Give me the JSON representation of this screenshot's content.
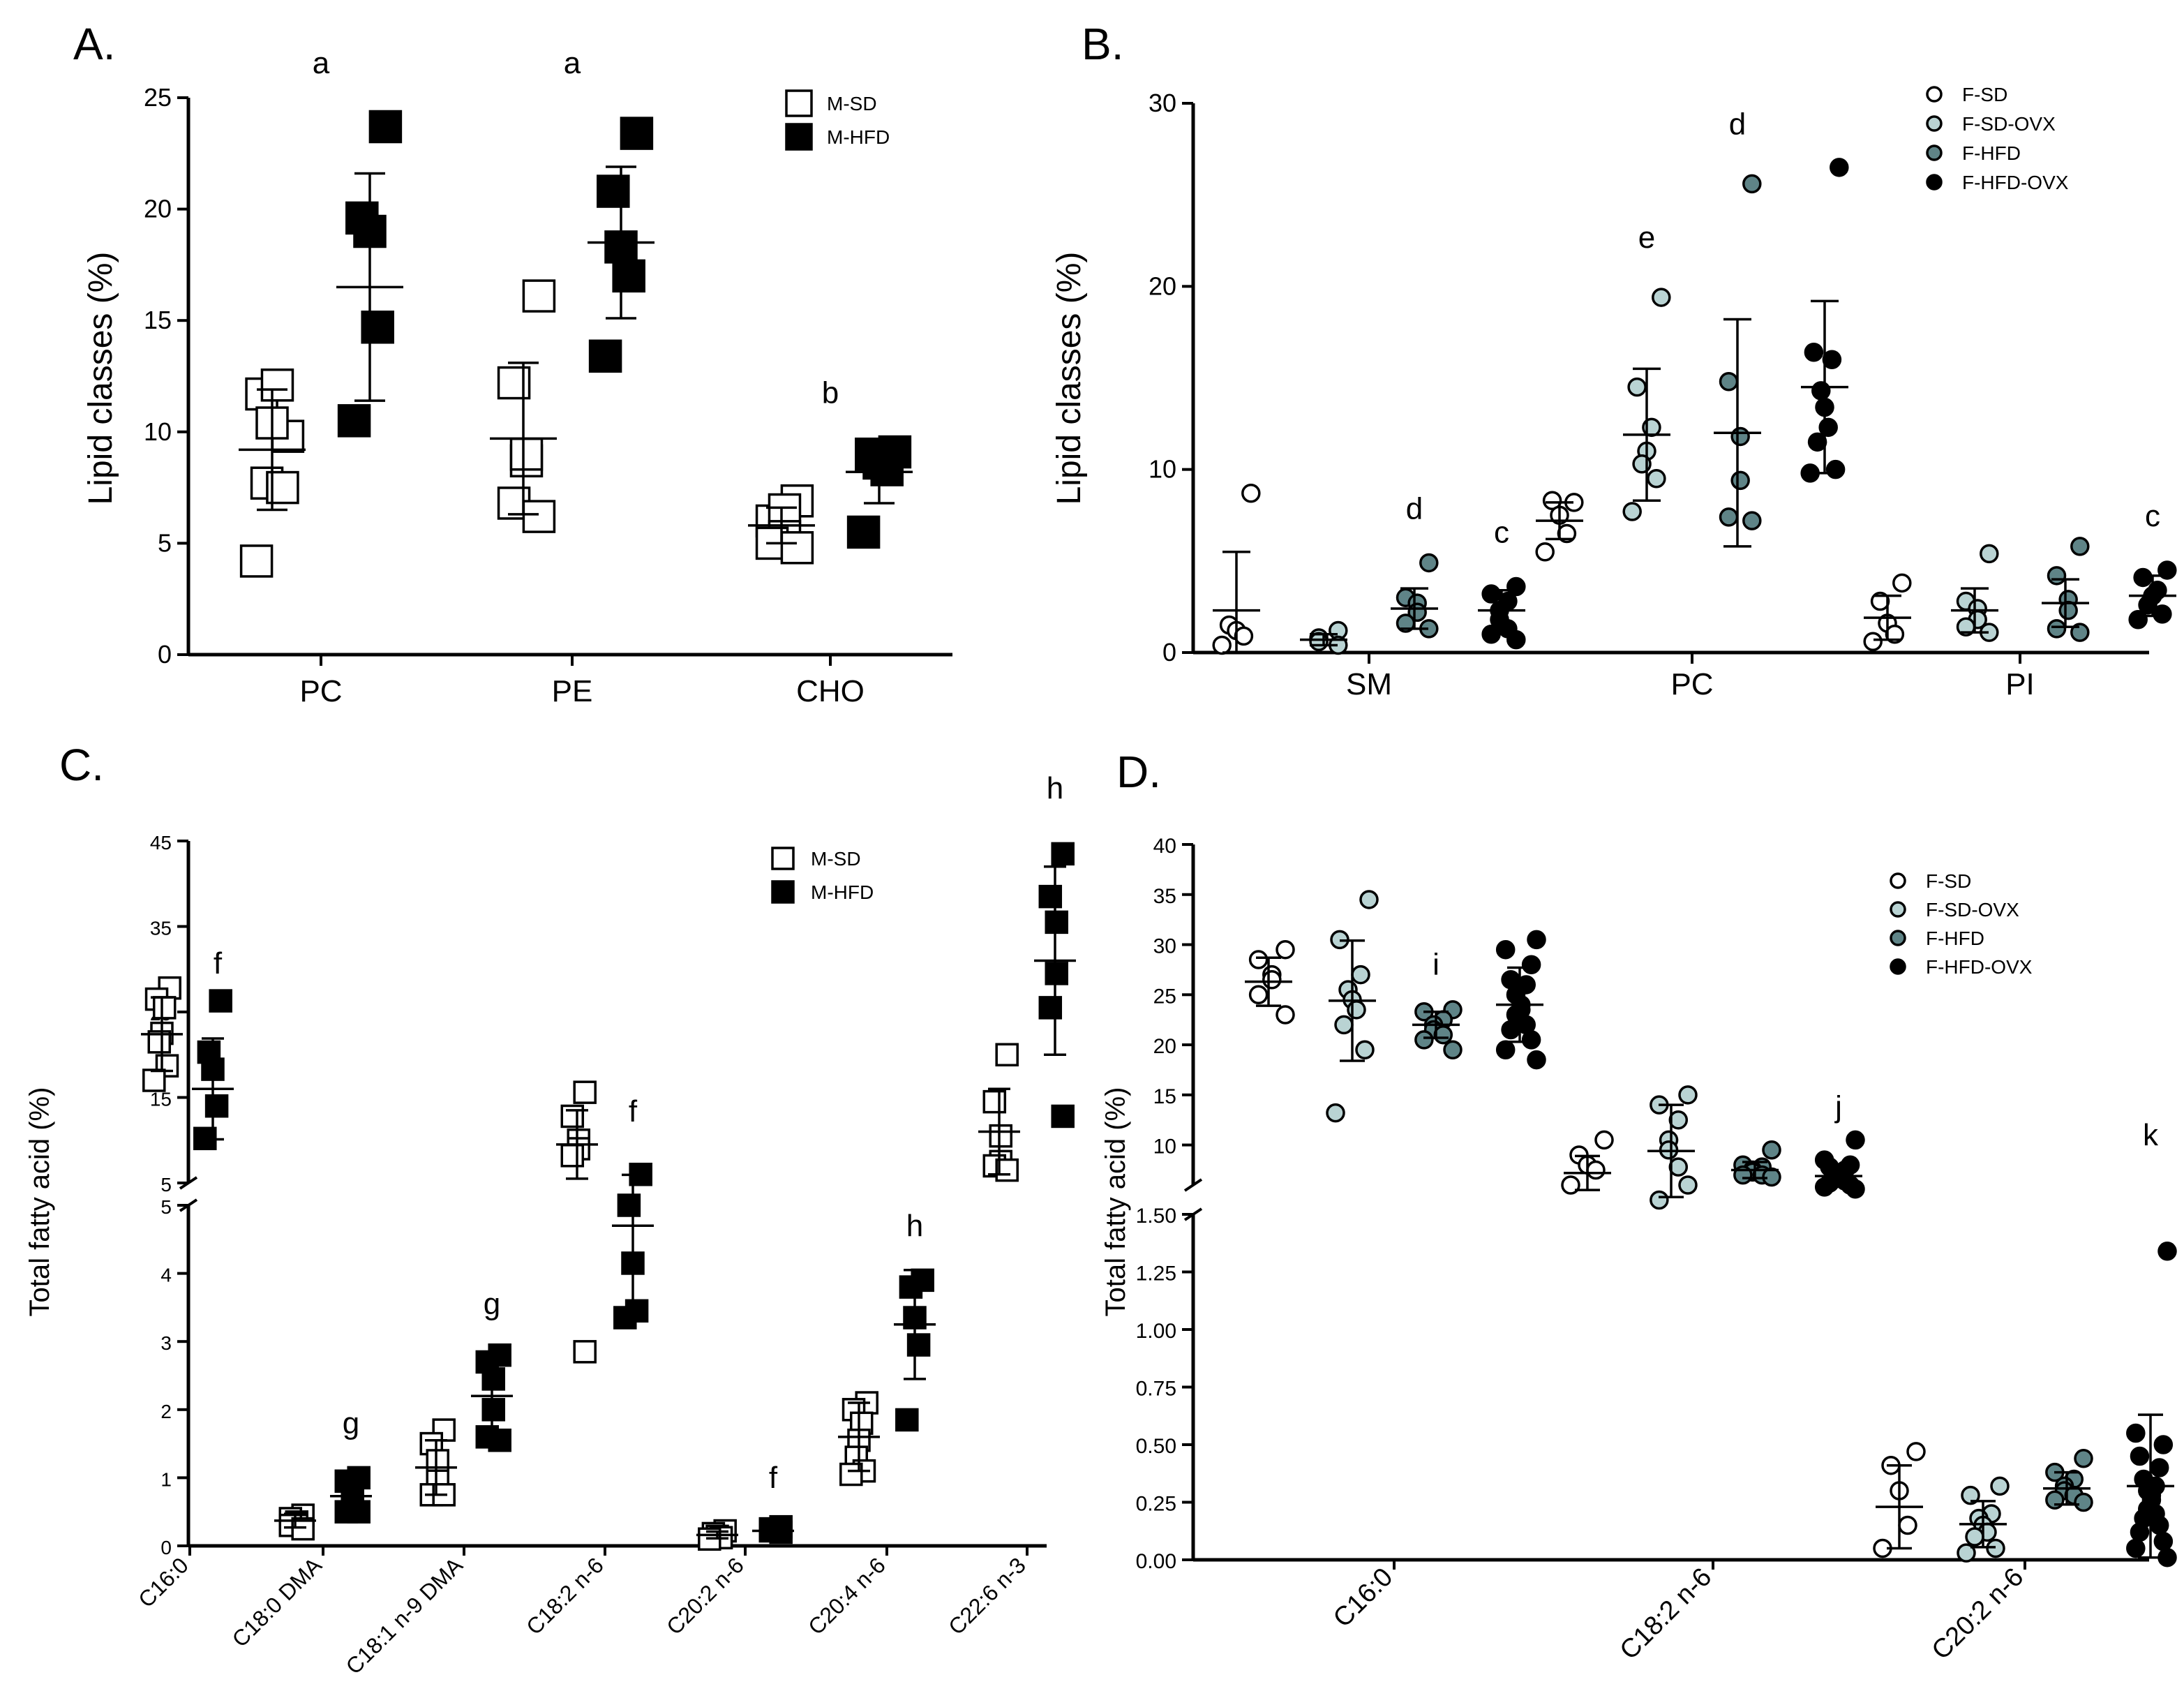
{
  "colors": {
    "white": "#ffffff",
    "black": "#000000",
    "light_teal": "#b9d3d3",
    "dark_teal": "#5f8487"
  },
  "chart_data": [
    {
      "id": "A",
      "panel_label": "A.",
      "type": "scatter",
      "ylabel": "Lipid  classes (%)",
      "ylim": [
        0,
        25
      ],
      "yticks": [
        0,
        5,
        10,
        15,
        20,
        25
      ],
      "categories": [
        "PC",
        "PE",
        "CHO"
      ],
      "legend": [
        {
          "label": "M-SD",
          "marker": "square",
          "fill": "#ffffff"
        },
        {
          "label": "M-HFD",
          "marker": "square",
          "fill": "#000000"
        }
      ],
      "series": [
        {
          "name": "M-SD",
          "marker": "square",
          "fill": "#ffffff",
          "points": [
            [
              9.8,
              11.7,
              12.1,
              10.4,
              7.7,
              7.5,
              4.2
            ],
            [
              16.1,
              12.2,
              8.7,
              9.0,
              6.8,
              6.2
            ],
            [
              6.9,
              6.0,
              6.5,
              5.3,
              5.0,
              4.8
            ]
          ],
          "mean": [
            9.2,
            9.7,
            5.8
          ],
          "sd": [
            2.7,
            3.4,
            0.8
          ]
        },
        {
          "name": "M-HFD",
          "marker": "square",
          "fill": "#000000",
          "points": [
            [
              23.7,
              19.6,
              19.0,
              14.7,
              10.5
            ],
            [
              23.4,
              20.8,
              18.3,
              17.0,
              13.4
            ],
            [
              9.1,
              9.0,
              8.6,
              8.3,
              5.5
            ]
          ],
          "mean": [
            16.5,
            18.5,
            8.2
          ],
          "sd": [
            5.1,
            3.4,
            1.4
          ]
        }
      ],
      "annotations": [
        {
          "text": "a",
          "cat": 0,
          "y": 26.1
        },
        {
          "text": "a",
          "cat": 1,
          "y": 26.1
        },
        {
          "text": "b",
          "cat": 2,
          "y": 11.3
        }
      ]
    },
    {
      "id": "B",
      "panel_label": "B.",
      "type": "scatter",
      "ylabel": "Lipid  classes (%)",
      "ylim": [
        0,
        30
      ],
      "yticks": [
        0,
        10,
        20,
        30
      ],
      "categories": [
        "SM",
        "PC",
        "PI"
      ],
      "legend": [
        {
          "label": "F-SD",
          "marker": "circle",
          "fill": "#ffffff"
        },
        {
          "label": "F-SD-OVX",
          "marker": "circle",
          "fill": "#b9d3d3"
        },
        {
          "label": "F-HFD",
          "marker": "circle",
          "fill": "#5f8487"
        },
        {
          "label": "F-HFD-OVX",
          "marker": "circle",
          "fill": "#000000"
        }
      ],
      "series": [
        {
          "name": "F-SD",
          "marker": "circle",
          "fill": "#ffffff",
          "points": [
            [
              8.7,
              1.5,
              1.2,
              0.9,
              0.4
            ],
            [
              8.2,
              8.3,
              7.5,
              6.5,
              5.5
            ],
            [
              3.8,
              2.8,
              1.6,
              1.0,
              0.6
            ]
          ],
          "mean": [
            2.3,
            7.2,
            1.9
          ],
          "sd": [
            3.2,
            1.0,
            1.2
          ]
        },
        {
          "name": "F-SD-OVX",
          "marker": "circle",
          "fill": "#b9d3d3",
          "points": [
            [
              1.2,
              0.8,
              0.6,
              0.4
            ],
            [
              19.4,
              14.5,
              12.3,
              11.0,
              10.3,
              9.5,
              7.7
            ],
            [
              5.4,
              2.8,
              2.4,
              1.8,
              1.4,
              1.1
            ]
          ],
          "mean": [
            0.7,
            11.9,
            2.3
          ],
          "sd": [
            0.3,
            3.6,
            1.2
          ]
        },
        {
          "name": "F-HFD",
          "marker": "circle",
          "fill": "#5f8487",
          "points": [
            [
              4.9,
              3.0,
              2.7,
              2.2,
              1.6,
              1.3
            ],
            [
              25.6,
              14.8,
              11.8,
              9.4,
              7.4,
              7.2
            ],
            [
              5.8,
              4.2,
              2.9,
              2.3,
              1.3,
              1.1
            ]
          ],
          "mean": [
            2.4,
            12.0,
            2.7
          ],
          "sd": [
            1.1,
            6.2,
            1.3
          ]
        },
        {
          "name": "F-HFD-OVX",
          "marker": "circle",
          "fill": "#000000",
          "points": [
            [
              3.6,
              3.2,
              2.8,
              2.3,
              1.8,
              1.3,
              1.0,
              0.7
            ],
            [
              26.5,
              16.4,
              16.0,
              14.3,
              13.4,
              12.3,
              11.5,
              10.0,
              9.8
            ],
            [
              4.5,
              4.1,
              3.4,
              3.1,
              2.6,
              2.1,
              1.8
            ]
          ],
          "mean": [
            2.3,
            14.5,
            3.1
          ],
          "sd": [
            1.1,
            4.7,
            1.1
          ]
        }
      ],
      "annotations": [
        {
          "text": "d",
          "cat": 0,
          "series": 2,
          "y": 7.3
        },
        {
          "text": "c",
          "cat": 0,
          "series": 3,
          "y": 6.0
        },
        {
          "text": "e",
          "cat": 1,
          "series": 1,
          "y": 22.1
        },
        {
          "text": "d",
          "cat": 1,
          "series": 2,
          "y": 28.3
        },
        {
          "text": "c",
          "cat": 2,
          "series": 3,
          "y": 6.9
        }
      ]
    },
    {
      "id": "C",
      "panel_label": "C.",
      "type": "scatter",
      "ylabel": "Total fatty acid (%)",
      "broken_axis": true,
      "upper_ylim": [
        5,
        45
      ],
      "upper_yticks": [
        5,
        15,
        25,
        35,
        45
      ],
      "lower_ylim": [
        0,
        5
      ],
      "lower_yticks": [
        0,
        1,
        2,
        3,
        4,
        5
      ],
      "categories": [
        "C16:0",
        "C18:0 DMA",
        "C18:1 n-9 DMA",
        "C18:2 n-6",
        "C20:2 n-6",
        "C20:4 n-6",
        "C22:6 n-3"
      ],
      "legend": [
        {
          "label": "M-SD",
          "marker": "square",
          "fill": "#ffffff"
        },
        {
          "label": "M-HFD",
          "marker": "square",
          "fill": "#000000"
        }
      ],
      "series": [
        {
          "name": "M-SD",
          "marker": "square",
          "fill": "#ffffff",
          "points": [
            [],
            [
              0.45,
              0.4,
              0.35,
              0.3,
              0.3,
              0.25
            ],
            [
              1.7,
              1.5,
              1.25,
              0.95,
              0.75,
              0.75
            ],
            [
              15.6,
              12.8,
              10.0,
              9.0,
              8.2,
              2.85
            ],
            [
              0.22,
              0.18,
              0.14,
              0.12,
              0.1
            ],
            [
              2.1,
              2.0,
              1.8,
              1.55,
              1.3,
              1.1,
              1.05
            ],
            [
              20.0,
              14.5,
              10.5,
              7.5,
              7.0,
              6.5
            ]
          ],
          "mean": [
            null,
            0.37,
            1.15,
            9.5,
            0.16,
            1.6,
            11.0
          ],
          "sd": [
            null,
            0.1,
            0.4,
            4.0,
            0.05,
            0.5,
            5.0
          ]
        },
        {
          "name": "M-HFD",
          "marker": "square",
          "fill": "#000000",
          "points": [
            [],
            [
              1.0,
              0.95,
              0.75,
              0.6,
              0.5,
              0.5
            ],
            [
              2.8,
              2.7,
              2.45,
              2.0,
              1.6,
              1.55
            ],
            [
              6.0,
              5.0,
              4.15,
              3.45,
              3.35
            ],
            [
              0.28,
              0.25,
              0.22,
              0.2
            ],
            [
              3.9,
              3.8,
              3.35,
              2.95,
              1.85
            ],
            [
              43.5,
              38.5,
              35.5,
              29.5,
              25.5,
              12.8
            ]
          ],
          "mean": [
            null,
            0.73,
            2.2,
            4.7,
            0.22,
            3.25,
            31.0
          ],
          "sd": [
            null,
            0.25,
            0.55,
            1.25,
            0.05,
            0.8,
            11.0
          ]
        }
      ],
      "c160_values": {
        "msd_points": [
          27.8,
          26.5,
          25.5,
          22.5,
          21.5,
          18.7,
          17.0
        ],
        "mhfd_points": [
          26.3,
          20.3,
          18.3,
          14.0,
          10.2
        ],
        "msd_mean": 22.4,
        "msd_sd": 4.3,
        "mhfd_mean": 16.0,
        "mhfd_sd": 5.9
      },
      "annotations": [
        {
          "text": "f",
          "cat": 0,
          "series": 1,
          "y": 29.5,
          "part": "upper"
        },
        {
          "text": "g",
          "cat": 1,
          "series": 1,
          "y": 1.65,
          "part": "lower"
        },
        {
          "text": "g",
          "cat": 2,
          "series": 1,
          "y": 3.4,
          "part": "lower"
        },
        {
          "text": "f",
          "cat": 3,
          "series": 1,
          "y": 12.2,
          "part": "upper"
        },
        {
          "text": "f",
          "cat": 4,
          "series": 1,
          "y": 0.85,
          "part": "lower"
        },
        {
          "text": "h",
          "cat": 5,
          "series": 1,
          "y": 4.55,
          "part": "lower"
        },
        {
          "text": "h",
          "cat": 6,
          "series": 1,
          "y": 50.0,
          "part": "upper"
        }
      ]
    },
    {
      "id": "D",
      "panel_label": "D.",
      "type": "scatter",
      "ylabel": "Total fatty acid (%)",
      "broken_axis": true,
      "upper_ylim": [
        6,
        40
      ],
      "upper_yticks": [
        10,
        15,
        20,
        25,
        30,
        35,
        40
      ],
      "lower_ylim": [
        0,
        1.5
      ],
      "lower_yticks": [
        0.0,
        0.25,
        0.5,
        0.75,
        1.0,
        1.25,
        1.5
      ],
      "lower_ytick_labels": [
        "0.00",
        "0.25",
        "0.50",
        "0.75",
        "1.00",
        "1.25",
        "1.50"
      ],
      "categories": [
        "C16:0",
        "C18:2 n-6",
        "C20:2 n-6"
      ],
      "legend": [
        {
          "label": "F-SD",
          "marker": "circle",
          "fill": "#ffffff"
        },
        {
          "label": "F-SD-OVX",
          "marker": "circle",
          "fill": "#b9d3d3"
        },
        {
          "label": "F-HFD",
          "marker": "circle",
          "fill": "#5f8487"
        },
        {
          "label": "F-HFD-OVX",
          "marker": "circle",
          "fill": "#000000"
        }
      ],
      "series": [
        {
          "name": "F-SD",
          "marker": "circle",
          "fill": "#ffffff",
          "points": [
            [
              29.5,
              28.5,
              27.0,
              26.5,
              25.0,
              23.0
            ],
            [
              10.5,
              9.0,
              8.0,
              7.5,
              6.0
            ],
            [
              0.47,
              0.41,
              0.3,
              0.15,
              0.05
            ]
          ],
          "mean": [
            26.3,
            7.2,
            0.23
          ],
          "sd": [
            2.4,
            1.7,
            0.18
          ]
        },
        {
          "name": "F-SD-OVX",
          "marker": "circle",
          "fill": "#b9d3d3",
          "points": [
            [
              34.5,
              30.5,
              27.0,
              25.5,
              24.5,
              23.5,
              22.0,
              19.5,
              13.2
            ],
            [
              15.0,
              14.0,
              12.5,
              10.5,
              9.5,
              7.8,
              4.5,
              6.0
            ],
            [
              0.32,
              0.28,
              0.2,
              0.18,
              0.15,
              0.12,
              0.1,
              0.05,
              0.03
            ]
          ],
          "mean": [
            24.4,
            9.4,
            0.155
          ],
          "sd": [
            6.0,
            4.6,
            0.1
          ]
        },
        {
          "name": "F-HFD",
          "marker": "circle",
          "fill": "#5f8487",
          "points": [
            [
              23.5,
              23.3,
              22.5,
              22.0,
              21.5,
              21.0,
              20.5,
              19.5
            ],
            [
              9.5,
              8.0,
              7.8,
              7.5,
              7.3,
              7.0,
              7.0,
              6.8
            ],
            [
              0.44,
              0.38,
              0.35,
              0.32,
              0.3,
              0.28,
              0.26,
              0.25
            ]
          ],
          "mean": [
            22.0,
            7.5,
            0.31
          ],
          "sd": [
            1.3,
            0.8,
            0.07
          ]
        },
        {
          "name": "F-HFD-OVX",
          "marker": "circle",
          "fill": "#000000",
          "points": [
            [
              30.5,
              29.5,
              28.0,
              26.5,
              26.0,
              25.0,
              24.0,
              23.5,
              23.0,
              22.0,
              21.5,
              20.5,
              19.5,
              18.5
            ],
            [
              10.5,
              8.5,
              8.0,
              7.8,
              7.5,
              7.2,
              7.0,
              6.8,
              6.6,
              6.4,
              6.2,
              6.0,
              5.8,
              5.6
            ],
            [
              1.34,
              0.55,
              0.5,
              0.45,
              0.4,
              0.35,
              0.32,
              0.3,
              0.28,
              0.26,
              0.22,
              0.2,
              0.18,
              0.15,
              0.12,
              0.08,
              0.05,
              0.01
            ]
          ],
          "mean": [
            24.0,
            6.9,
            0.32
          ],
          "sd": [
            3.7,
            1.0,
            0.31
          ]
        }
      ],
      "annotations": [
        {
          "text": "i",
          "cat": 0,
          "series": 2,
          "y": 27.0,
          "part": "upper"
        },
        {
          "text": "j",
          "cat": 1,
          "series": 3,
          "y": 12.8,
          "part": "upper"
        },
        {
          "text": "k",
          "cat": 2,
          "series": 3,
          "y": 1.8,
          "part": "lower"
        }
      ]
    }
  ]
}
